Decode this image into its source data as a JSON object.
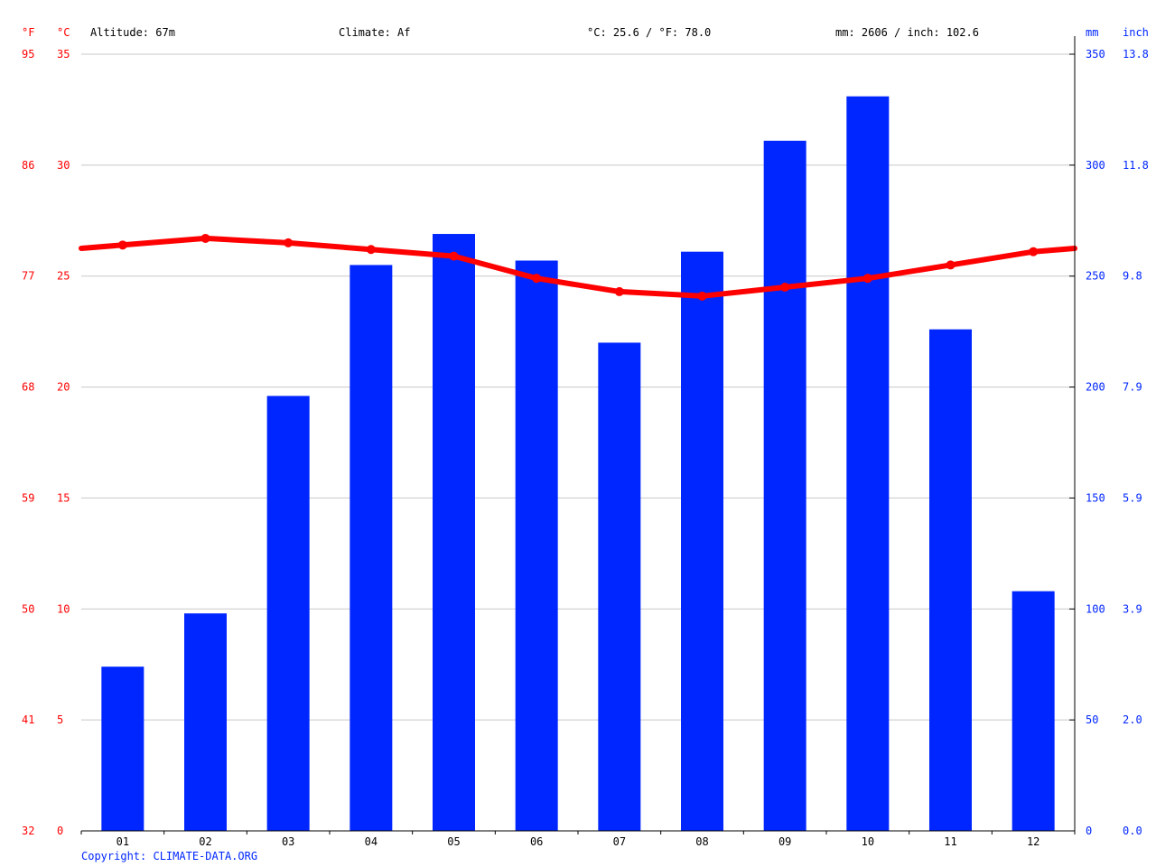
{
  "header": {
    "unit_f": "°F",
    "unit_c": "°C",
    "unit_mm": "mm",
    "unit_inch": "inch",
    "altitude": "Altitude: 67m",
    "climate": "Climate: Af",
    "temp_avg": "°C: 25.6 / °F: 78.0",
    "precip_total": "mm: 2606 / inch: 102.6"
  },
  "copyright": "Copyright: CLIMATE-DATA.ORG",
  "colors": {
    "temperature": "#ff0000",
    "precipitation": "#0026ff",
    "grid": "#c8c8c8",
    "axis": "#000000"
  },
  "chart_data": {
    "type": "bar",
    "categories": [
      "01",
      "02",
      "03",
      "04",
      "05",
      "06",
      "07",
      "08",
      "09",
      "10",
      "11",
      "12"
    ],
    "series": [
      {
        "type": "bar",
        "axis": "right",
        "values": [
          74,
          98,
          196,
          255,
          269,
          257,
          220,
          261,
          311,
          331,
          226,
          108
        ]
      },
      {
        "type": "line",
        "axis": "left",
        "values": [
          26.4,
          26.7,
          26.5,
          26.2,
          25.9,
          24.9,
          24.3,
          24.1,
          24.5,
          24.9,
          25.5,
          26.1
        ]
      }
    ],
    "y_left": {
      "ylim": [
        0,
        35
      ],
      "ticks_c": [
        "0",
        "5",
        "10",
        "15",
        "20",
        "25",
        "30",
        "35"
      ],
      "ticks_f": [
        "32",
        "41",
        "50",
        "59",
        "68",
        "77",
        "86",
        "95"
      ]
    },
    "y_right": {
      "ylim": [
        0,
        350
      ],
      "ticks_mm": [
        "0",
        "50",
        "100",
        "150",
        "200",
        "250",
        "300",
        "350"
      ],
      "ticks_inch": [
        "0.0",
        "2.0",
        "3.9",
        "5.9",
        "7.9",
        "9.8",
        "11.8",
        "13.8"
      ]
    },
    "grid": true
  }
}
